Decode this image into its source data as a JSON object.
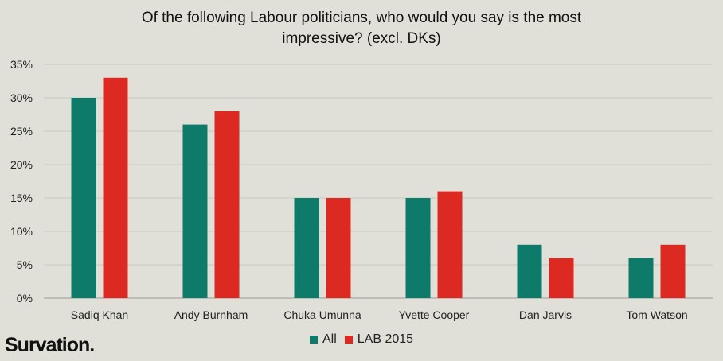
{
  "colors": {
    "all": "#0e7a6a",
    "lab": "#dc2a23",
    "grid": "#c7c7bf"
  },
  "brand": "Survation.",
  "chart_data": {
    "type": "bar",
    "title_lines": [
      "Of the following  Labour politicians,  who would you say is the most",
      "impressive? (excl. DKs)"
    ],
    "categories": [
      "Sadiq Khan",
      "Andy Burnham",
      "Chuka Umunna",
      "Yvette Cooper",
      "Dan Jarvis",
      "Tom Watson"
    ],
    "series": [
      {
        "name": "All",
        "values": [
          30,
          26,
          15,
          15,
          8,
          6
        ]
      },
      {
        "name": "LAB 2015",
        "values": [
          33,
          28,
          15,
          16,
          6,
          8
        ]
      }
    ],
    "y_ticks": [
      "0%",
      "5%",
      "10%",
      "15%",
      "20%",
      "25%",
      "30%",
      "35%"
    ],
    "ylim": [
      0,
      35
    ],
    "grid": true,
    "legend_position": "bottom"
  }
}
